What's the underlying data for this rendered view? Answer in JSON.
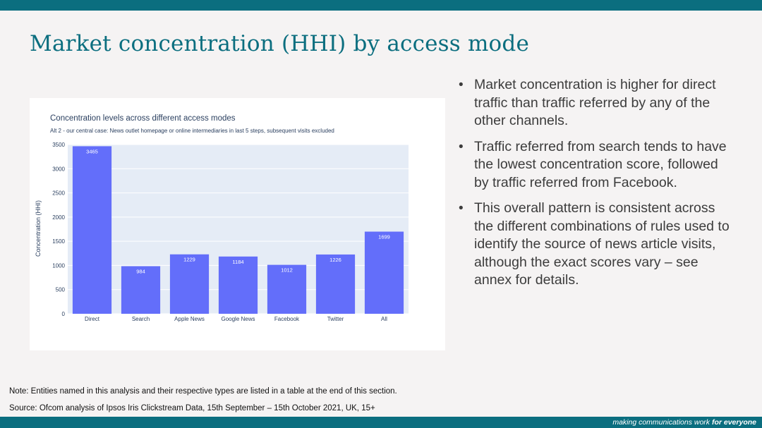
{
  "slide": {
    "title": "Market concentration (HHI) by access mode",
    "bullets": [
      "Market concentration is higher for direct traffic than traffic referred by any of the other channels.",
      "Traffic referred from search tends to have the lowest concentration score, followed by traffic referred from Facebook.",
      "This overall pattern is consistent across the different combinations of rules used to identify the source of news article visits, although the exact scores vary – see annex for details."
    ],
    "note": "Note: Entities named in this analysis and their respective types are listed in a table at the end of this section.",
    "source": "Source: Ofcom analysis of Ipsos Iris Clickstream Data, 15th September – 15th October 2021, UK, 15+",
    "tagline_regular": "making communications work ",
    "tagline_bold": "for everyone"
  },
  "colors": {
    "brand": "#0b6e7f",
    "bar": "#636efa",
    "plot_bg": "#e5ecf6"
  },
  "chart_data": {
    "type": "bar",
    "title": "Concentration levels across different access modes",
    "subtitle": "Alt 2 - our central case: News outlet homepage or online intermediaries in last 5 steps, subsequent visits excluded",
    "xlabel": "",
    "ylabel": "Concentration (HHI)",
    "categories": [
      "Direct",
      "Search",
      "Apple News",
      "Google News",
      "Facebook",
      "Twitter",
      "All"
    ],
    "values": [
      3465,
      984,
      1229,
      1184,
      1012,
      1226,
      1699
    ],
    "ylim": [
      0,
      3500
    ],
    "yticks": [
      0,
      500,
      1000,
      1500,
      2000,
      2500,
      3000,
      3500
    ],
    "grid": true,
    "legend": "none"
  }
}
